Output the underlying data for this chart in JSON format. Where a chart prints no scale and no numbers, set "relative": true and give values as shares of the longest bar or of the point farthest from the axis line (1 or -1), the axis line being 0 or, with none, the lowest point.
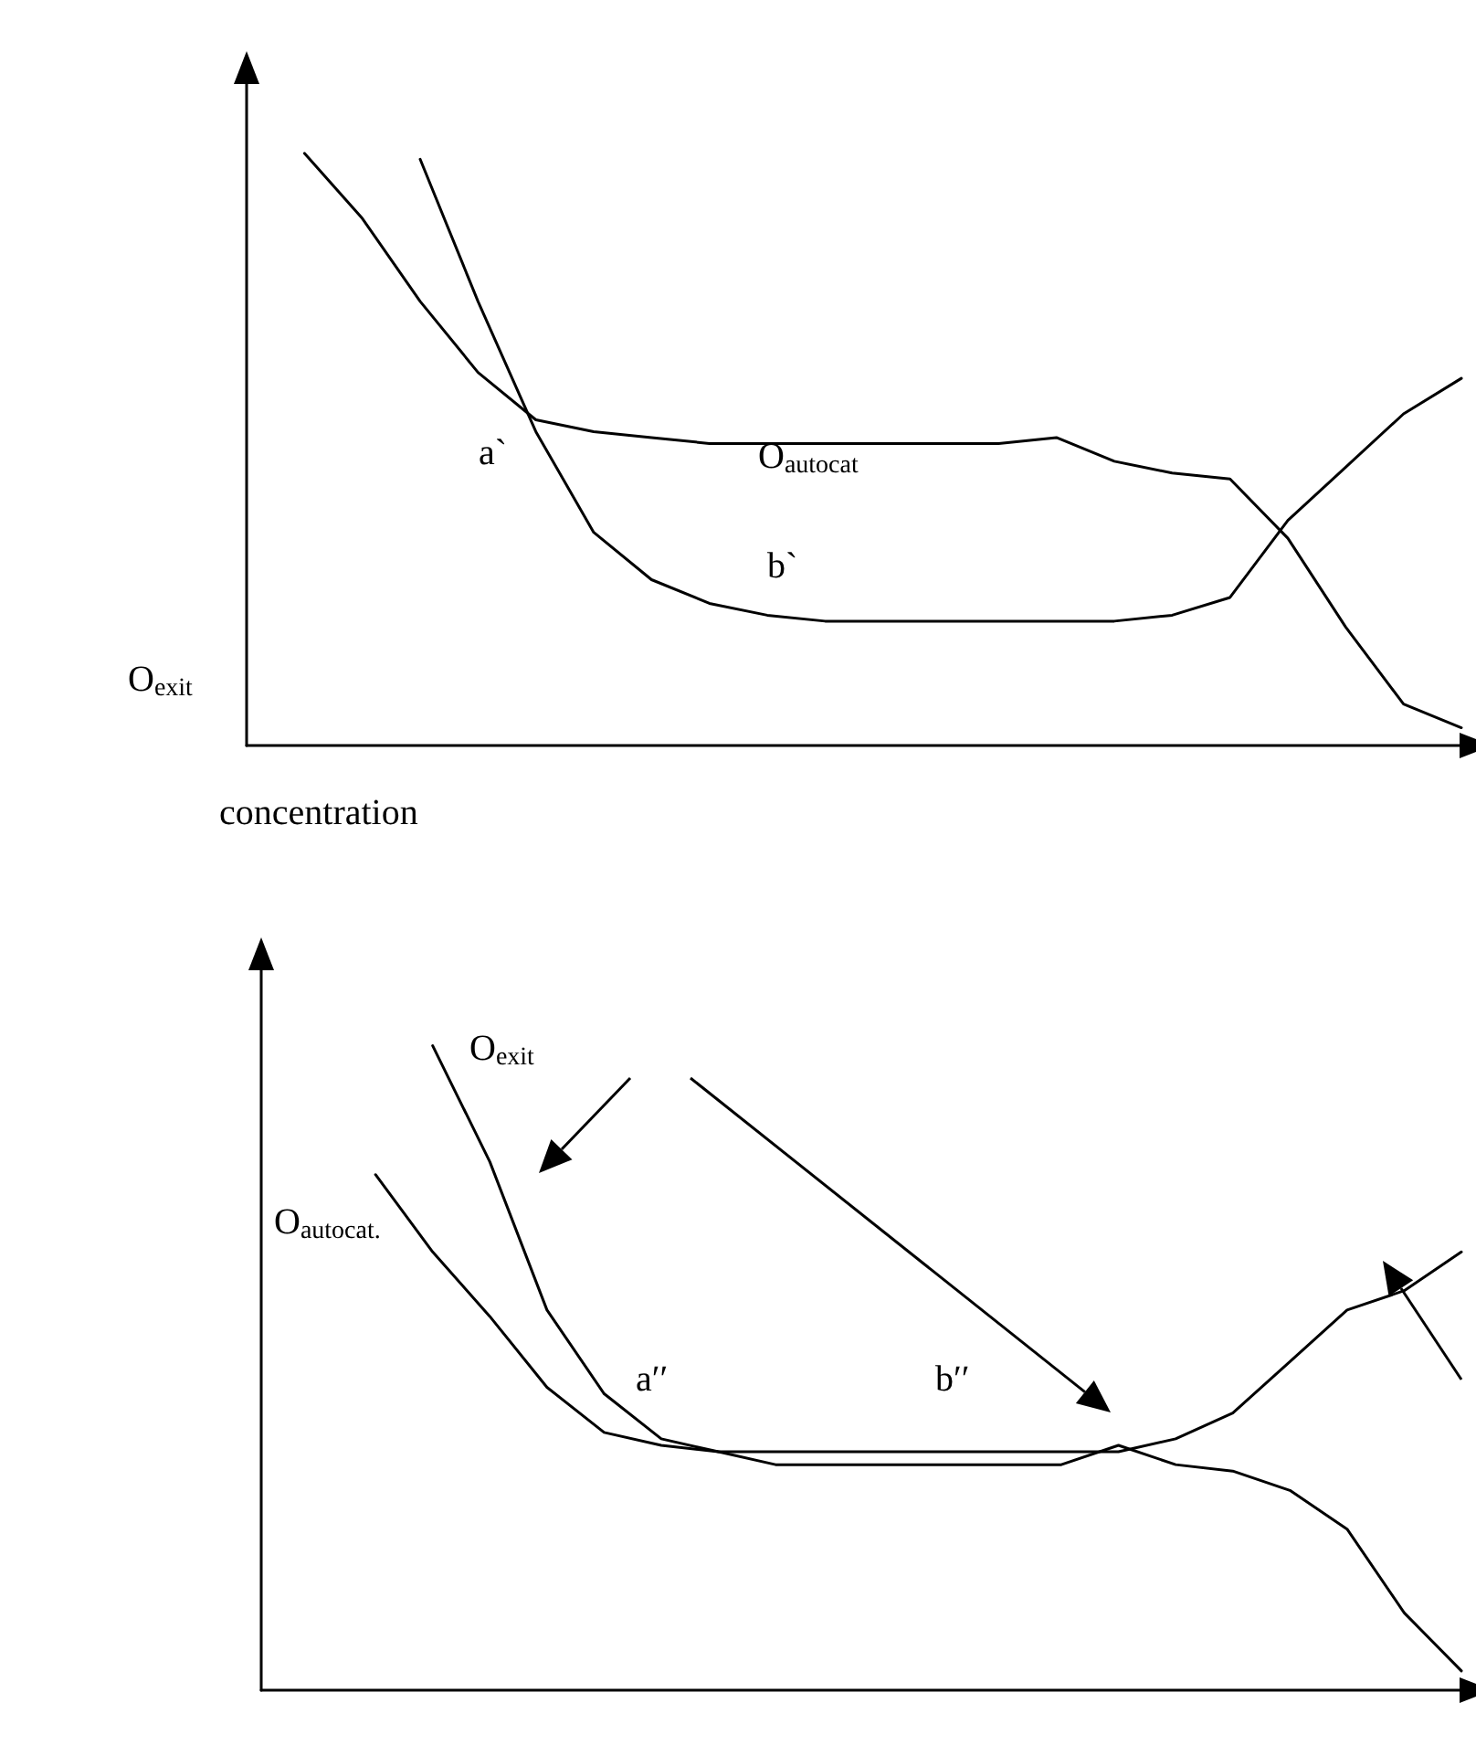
{
  "chart_data": [
    {
      "type": "line",
      "relative": true,
      "xlabel": "concentration",
      "ylabel": "O$_{exit}$",
      "annotations": [
        "a`",
        "O$_{autocat}$",
        "b`"
      ],
      "categories": [
        null,
        null,
        null,
        null,
        null,
        null,
        null,
        null,
        null,
        null,
        null,
        null,
        null,
        null,
        null,
        null,
        null,
        null,
        null,
        null,
        null,
        null
      ],
      "grid": false,
      "marker": "none",
      "series": [
        {
          "color": "#000000",
          "values": [
            null,
            1,
            0.89,
            0.75,
            0.63,
            0.55,
            0.53,
            0.52,
            0.51,
            0.51,
            0.51,
            0.51,
            0.51,
            0.51,
            0.52,
            0.48,
            0.46,
            0.45,
            0.35,
            0.2,
            0.07,
            0.03
          ]
        },
        {
          "color": "#000000",
          "values": [
            null,
            null,
            null,
            0.99,
            0.75,
            0.53,
            0.36,
            0.28,
            0.24,
            0.22,
            0.21,
            0.21,
            0.21,
            0.21,
            0.21,
            0.21,
            0.22,
            0.25,
            0.38,
            0.47,
            0.56,
            0.62
          ]
        }
      ]
    },
    {
      "type": "line",
      "relative": true,
      "annotations": [
        "O$_{exit}$",
        "O$_{autocat.}$",
        "a′′",
        "b′′"
      ],
      "categories": [
        null,
        null,
        null,
        null,
        null,
        null,
        null,
        null,
        null,
        null,
        null,
        null,
        null,
        null,
        null,
        null,
        null,
        null,
        null,
        null,
        null,
        null
      ],
      "grid": false,
      "marker": "none",
      "series": [
        {
          "color": "#000000",
          "values": [
            null,
            null,
            null,
            1,
            0.82,
            0.59,
            0.46,
            0.39,
            0.37,
            0.35,
            0.35,
            0.35,
            0.35,
            0.35,
            0.35,
            0.38,
            0.35,
            0.34,
            0.31,
            0.25,
            0.12,
            0.03
          ]
        },
        {
          "color": "#000000",
          "values": [
            null,
            null,
            0.8,
            0.68,
            0.58,
            0.47,
            0.4,
            0.38,
            0.37,
            0.37,
            0.37,
            0.37,
            0.37,
            0.37,
            0.37,
            0.37,
            0.39,
            0.43,
            0.51,
            0.59,
            0.62,
            0.68
          ]
        }
      ]
    }
  ]
}
